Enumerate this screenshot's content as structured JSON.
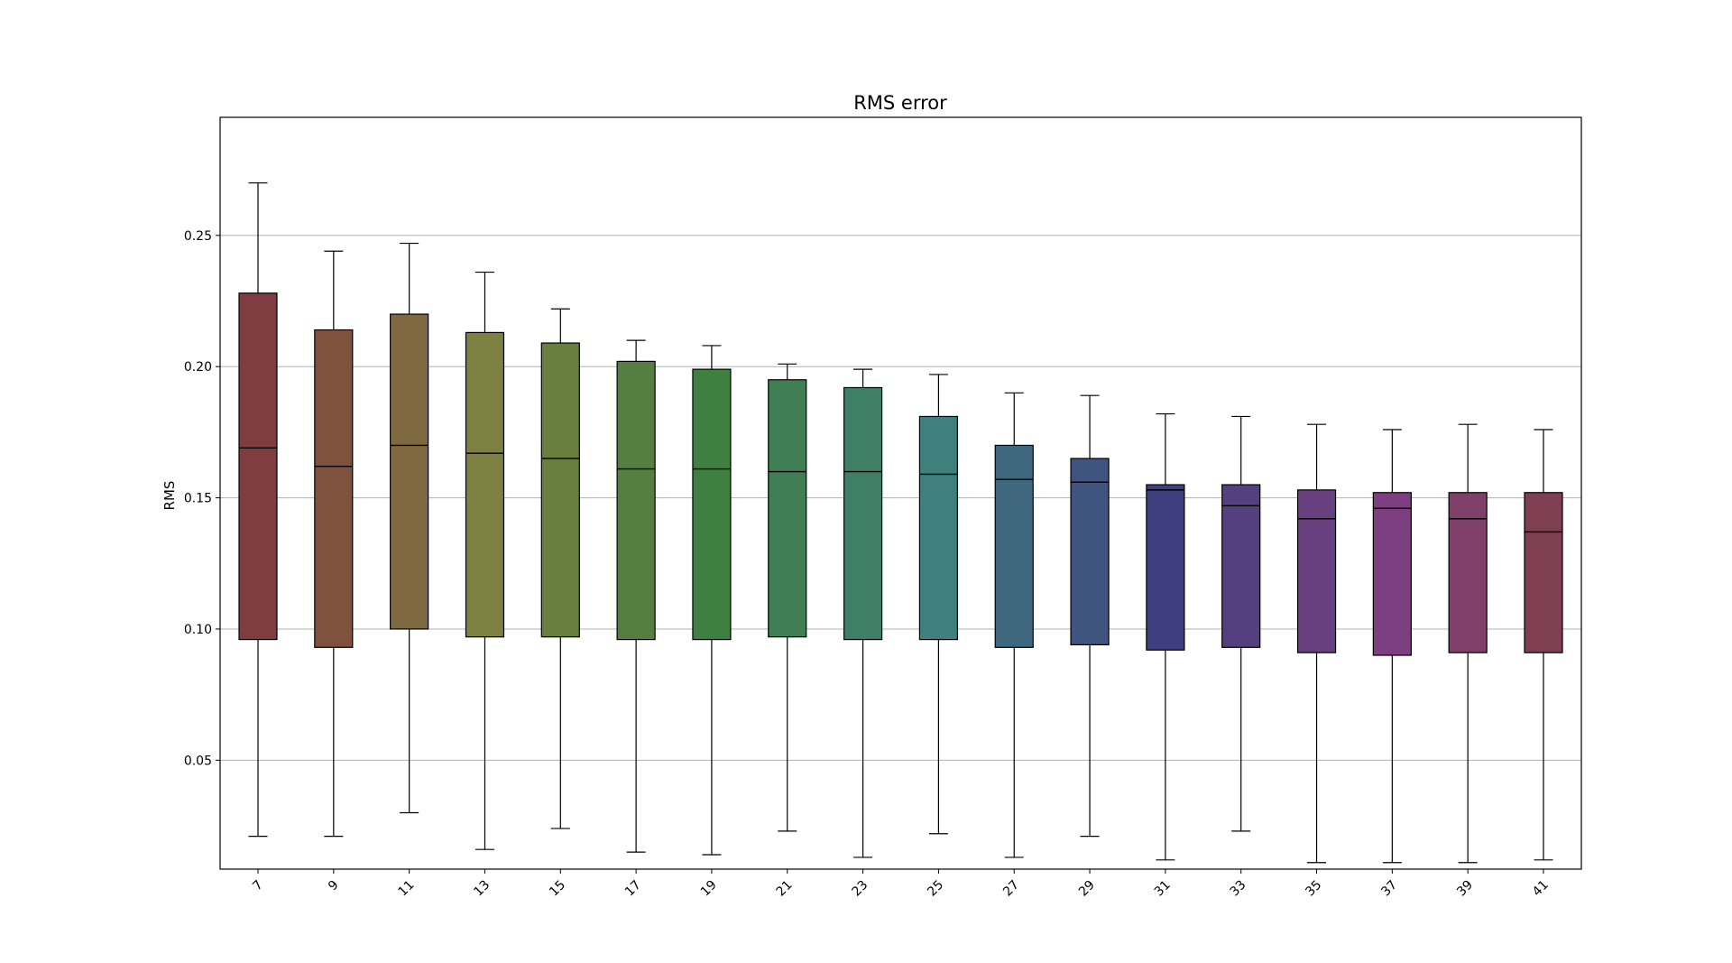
{
  "chart_data": {
    "type": "box",
    "title": "RMS error",
    "xlabel": "",
    "ylabel": "RMS",
    "ylim": [
      0.0085,
      0.295
    ],
    "yticks": [
      "0.05",
      "0.10",
      "0.15",
      "0.20",
      "0.25"
    ],
    "grid": "y",
    "categories": [
      "7",
      "9",
      "11",
      "13",
      "15",
      "17",
      "19",
      "21",
      "23",
      "25",
      "27",
      "29",
      "31",
      "33",
      "35",
      "37",
      "39",
      "41"
    ],
    "boxes": [
      {
        "category": "7",
        "whisker_low": 0.021,
        "q1": 0.096,
        "median": 0.169,
        "q3": 0.228,
        "whisker_high": 0.27,
        "color": "#7f3d42"
      },
      {
        "category": "9",
        "whisker_low": 0.021,
        "q1": 0.093,
        "median": 0.162,
        "q3": 0.214,
        "whisker_high": 0.244,
        "color": "#7f523d"
      },
      {
        "category": "11",
        "whisker_low": 0.03,
        "q1": 0.1,
        "median": 0.17,
        "q3": 0.22,
        "whisker_high": 0.247,
        "color": "#7f6940"
      },
      {
        "category": "13",
        "whisker_low": 0.016,
        "q1": 0.097,
        "median": 0.167,
        "q3": 0.213,
        "whisker_high": 0.236,
        "color": "#7d8040"
      },
      {
        "category": "15",
        "whisker_low": 0.024,
        "q1": 0.097,
        "median": 0.165,
        "q3": 0.209,
        "whisker_high": 0.222,
        "color": "#687f40"
      },
      {
        "category": "17",
        "whisker_low": 0.015,
        "q1": 0.096,
        "median": 0.161,
        "q3": 0.202,
        "whisker_high": 0.21,
        "color": "#547f40"
      },
      {
        "category": "19",
        "whisker_low": 0.014,
        "q1": 0.096,
        "median": 0.161,
        "q3": 0.199,
        "whisker_high": 0.208,
        "color": "#3f7f3f"
      },
      {
        "category": "21",
        "whisker_low": 0.023,
        "q1": 0.097,
        "median": 0.16,
        "q3": 0.195,
        "whisker_high": 0.201,
        "color": "#3f7f53"
      },
      {
        "category": "23",
        "whisker_low": 0.013,
        "q1": 0.096,
        "median": 0.16,
        "q3": 0.192,
        "whisker_high": 0.199,
        "color": "#3f7f68"
      },
      {
        "category": "25",
        "whisker_low": 0.022,
        "q1": 0.096,
        "median": 0.159,
        "q3": 0.181,
        "whisker_high": 0.197,
        "color": "#3f7f7c"
      },
      {
        "category": "27",
        "whisker_low": 0.013,
        "q1": 0.093,
        "median": 0.157,
        "q3": 0.17,
        "whisker_high": 0.19,
        "color": "#3f687f"
      },
      {
        "category": "29",
        "whisker_low": 0.021,
        "q1": 0.094,
        "median": 0.156,
        "q3": 0.165,
        "whisker_high": 0.189,
        "color": "#3f547f"
      },
      {
        "category": "31",
        "whisker_low": 0.012,
        "q1": 0.092,
        "median": 0.153,
        "q3": 0.155,
        "whisker_high": 0.182,
        "color": "#3f3f7f"
      },
      {
        "category": "33",
        "whisker_low": 0.023,
        "q1": 0.093,
        "median": 0.147,
        "q3": 0.155,
        "whisker_high": 0.181,
        "color": "#543f7f"
      },
      {
        "category": "35",
        "whisker_low": 0.011,
        "q1": 0.091,
        "median": 0.142,
        "q3": 0.153,
        "whisker_high": 0.178,
        "color": "#683f7f"
      },
      {
        "category": "37",
        "whisker_low": 0.011,
        "q1": 0.09,
        "median": 0.146,
        "q3": 0.152,
        "whisker_high": 0.176,
        "color": "#7d3f7f"
      },
      {
        "category": "39",
        "whisker_low": 0.011,
        "q1": 0.091,
        "median": 0.142,
        "q3": 0.152,
        "whisker_high": 0.178,
        "color": "#7f3f68"
      },
      {
        "category": "41",
        "whisker_low": 0.012,
        "q1": 0.091,
        "median": 0.137,
        "q3": 0.152,
        "whisker_high": 0.176,
        "color": "#7f3f53"
      }
    ]
  }
}
